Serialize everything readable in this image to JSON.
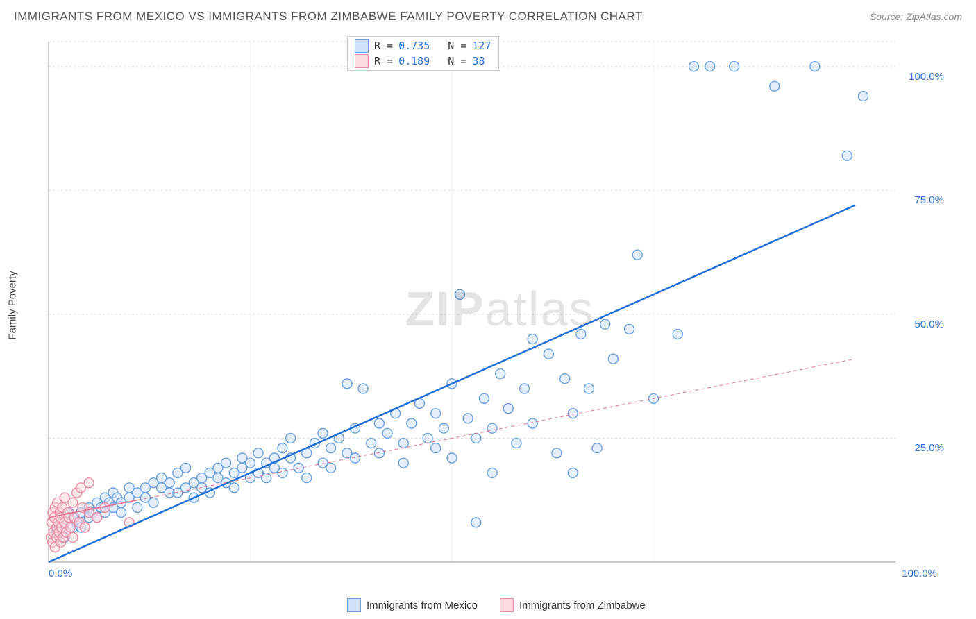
{
  "title": "IMMIGRANTS FROM MEXICO VS IMMIGRANTS FROM ZIMBABWE FAMILY POVERTY CORRELATION CHART",
  "source": "Source: ZipAtlas.com",
  "watermark_zip": "ZIP",
  "watermark_atlas": "atlas",
  "y_label": "Family Poverty",
  "chart": {
    "type": "scatter",
    "xlim": [
      0,
      105
    ],
    "ylim": [
      0,
      105
    ],
    "grid_color": "#dddddd",
    "grid_dash": "3,3",
    "axis_color": "#999999",
    "background": "#ffffff",
    "tick_color": "#2b6fd6",
    "y_ticks": [
      25,
      50,
      75,
      100
    ],
    "y_tick_labels": [
      "25.0%",
      "50.0%",
      "75.0%",
      "100.0%"
    ],
    "x_ticks": [
      0,
      100
    ],
    "x_tick_labels": [
      "0.0%",
      "100.0%"
    ],
    "marker_radius": 7,
    "marker_stroke_width": 1.4,
    "series": [
      {
        "name": "Immigrants from Mexico",
        "fill": "#cfe2fa",
        "stroke": "#6a9fe0",
        "fill_opacity": 0.55,
        "r_value": "0.735",
        "n_value": "127",
        "trend_color": "#1f6dd6",
        "trend_width": 2.5,
        "trend_dash": "none",
        "trend": {
          "x1": 0,
          "y1": 0,
          "x2": 100,
          "y2": 72
        },
        "extrap_dash": "5,5",
        "points": [
          [
            1,
            6
          ],
          [
            1.5,
            7
          ],
          [
            2,
            5
          ],
          [
            2,
            8
          ],
          [
            2.5,
            10
          ],
          [
            3,
            7
          ],
          [
            3,
            9
          ],
          [
            3.5,
            8
          ],
          [
            4,
            10
          ],
          [
            4,
            7
          ],
          [
            5,
            9
          ],
          [
            5,
            11
          ],
          [
            5.5,
            10
          ],
          [
            6,
            12
          ],
          [
            6,
            9
          ],
          [
            6.5,
            11
          ],
          [
            7,
            10
          ],
          [
            7,
            13
          ],
          [
            7.5,
            12
          ],
          [
            8,
            11
          ],
          [
            8,
            14
          ],
          [
            8.5,
            13
          ],
          [
            9,
            12
          ],
          [
            9,
            10
          ],
          [
            10,
            13
          ],
          [
            10,
            15
          ],
          [
            11,
            14
          ],
          [
            11,
            11
          ],
          [
            12,
            15
          ],
          [
            12,
            13
          ],
          [
            13,
            16
          ],
          [
            13,
            12
          ],
          [
            14,
            15
          ],
          [
            14,
            17
          ],
          [
            15,
            14
          ],
          [
            15,
            16
          ],
          [
            16,
            18
          ],
          [
            16,
            14
          ],
          [
            17,
            15
          ],
          [
            17,
            19
          ],
          [
            18,
            16
          ],
          [
            18,
            13
          ],
          [
            19,
            17
          ],
          [
            19,
            15
          ],
          [
            20,
            18
          ],
          [
            20,
            14
          ],
          [
            21,
            17
          ],
          [
            21,
            19
          ],
          [
            22,
            16
          ],
          [
            22,
            20
          ],
          [
            23,
            18
          ],
          [
            23,
            15
          ],
          [
            24,
            19
          ],
          [
            24,
            21
          ],
          [
            25,
            17
          ],
          [
            25,
            20
          ],
          [
            26,
            18
          ],
          [
            26,
            22
          ],
          [
            27,
            20
          ],
          [
            27,
            17
          ],
          [
            28,
            21
          ],
          [
            28,
            19
          ],
          [
            29,
            23
          ],
          [
            29,
            18
          ],
          [
            30,
            21
          ],
          [
            30,
            25
          ],
          [
            31,
            19
          ],
          [
            32,
            22
          ],
          [
            32,
            17
          ],
          [
            33,
            24
          ],
          [
            34,
            20
          ],
          [
            34,
            26
          ],
          [
            35,
            23
          ],
          [
            35,
            19
          ],
          [
            36,
            25
          ],
          [
            37,
            22
          ],
          [
            37,
            36
          ],
          [
            38,
            27
          ],
          [
            38,
            21
          ],
          [
            39,
            35
          ],
          [
            40,
            24
          ],
          [
            41,
            28
          ],
          [
            41,
            22
          ],
          [
            42,
            26
          ],
          [
            43,
            30
          ],
          [
            44,
            24
          ],
          [
            44,
            20
          ],
          [
            45,
            28
          ],
          [
            46,
            32
          ],
          [
            47,
            25
          ],
          [
            48,
            30
          ],
          [
            48,
            23
          ],
          [
            49,
            27
          ],
          [
            50,
            21
          ],
          [
            50,
            36
          ],
          [
            51,
            54
          ],
          [
            52,
            29
          ],
          [
            53,
            25
          ],
          [
            53,
            8
          ],
          [
            54,
            33
          ],
          [
            55,
            27
          ],
          [
            55,
            18
          ],
          [
            56,
            38
          ],
          [
            57,
            31
          ],
          [
            58,
            24
          ],
          [
            59,
            35
          ],
          [
            60,
            28
          ],
          [
            60,
            45
          ],
          [
            62,
            42
          ],
          [
            63,
            22
          ],
          [
            64,
            37
          ],
          [
            65,
            30
          ],
          [
            65,
            18
          ],
          [
            66,
            46
          ],
          [
            67,
            35
          ],
          [
            68,
            23
          ],
          [
            69,
            48
          ],
          [
            70,
            41
          ],
          [
            72,
            47
          ],
          [
            73,
            62
          ],
          [
            75,
            33
          ],
          [
            78,
            46
          ],
          [
            80,
            100
          ],
          [
            82,
            100
          ],
          [
            85,
            100
          ],
          [
            90,
            96
          ],
          [
            95,
            100
          ],
          [
            99,
            82
          ],
          [
            101,
            94
          ]
        ]
      },
      {
        "name": "Immigrants from Zimbabwe",
        "fill": "#fcd9e1",
        "stroke": "#e98aa3",
        "fill_opacity": 0.55,
        "r_value": "0.189",
        "n_value": "38",
        "trend_color": "#e36f8b",
        "trend_width": 1.5,
        "trend_dash": "none",
        "trend": {
          "x1": 0,
          "y1": 9,
          "x2": 11,
          "y2": 12.5
        },
        "extrap_dash": "5,4",
        "extrap": {
          "x1": 11,
          "y1": 12.5,
          "x2": 100,
          "y2": 41
        },
        "points": [
          [
            0.3,
            5
          ],
          [
            0.4,
            8
          ],
          [
            0.5,
            4
          ],
          [
            0.5,
            10
          ],
          [
            0.6,
            6
          ],
          [
            0.7,
            9
          ],
          [
            0.8,
            3
          ],
          [
            0.8,
            11
          ],
          [
            1,
            7
          ],
          [
            1,
            5
          ],
          [
            1.1,
            12
          ],
          [
            1.2,
            8
          ],
          [
            1.3,
            6
          ],
          [
            1.4,
            10
          ],
          [
            1.5,
            4
          ],
          [
            1.5,
            9
          ],
          [
            1.6,
            7
          ],
          [
            1.7,
            11
          ],
          [
            1.8,
            5
          ],
          [
            2,
            8
          ],
          [
            2,
            13
          ],
          [
            2.2,
            6
          ],
          [
            2.4,
            10
          ],
          [
            2.5,
            9
          ],
          [
            2.7,
            7
          ],
          [
            3,
            12
          ],
          [
            3,
            5
          ],
          [
            3.2,
            9
          ],
          [
            3.5,
            14
          ],
          [
            3.8,
            8
          ],
          [
            4,
            15
          ],
          [
            4.2,
            11
          ],
          [
            4.5,
            7
          ],
          [
            5,
            16
          ],
          [
            5,
            10
          ],
          [
            6,
            9
          ],
          [
            7,
            11
          ],
          [
            10,
            8
          ]
        ]
      }
    ],
    "legend_top": {
      "r_label": "R",
      "eq": "=",
      "n_label": "N"
    },
    "legend_bottom": [
      {
        "label": "Immigrants from Mexico",
        "fill": "#cfe2fa",
        "stroke": "#6a9fe0"
      },
      {
        "label": "Immigrants from Zimbabwe",
        "fill": "#fcd9e1",
        "stroke": "#e98aa3"
      }
    ]
  }
}
